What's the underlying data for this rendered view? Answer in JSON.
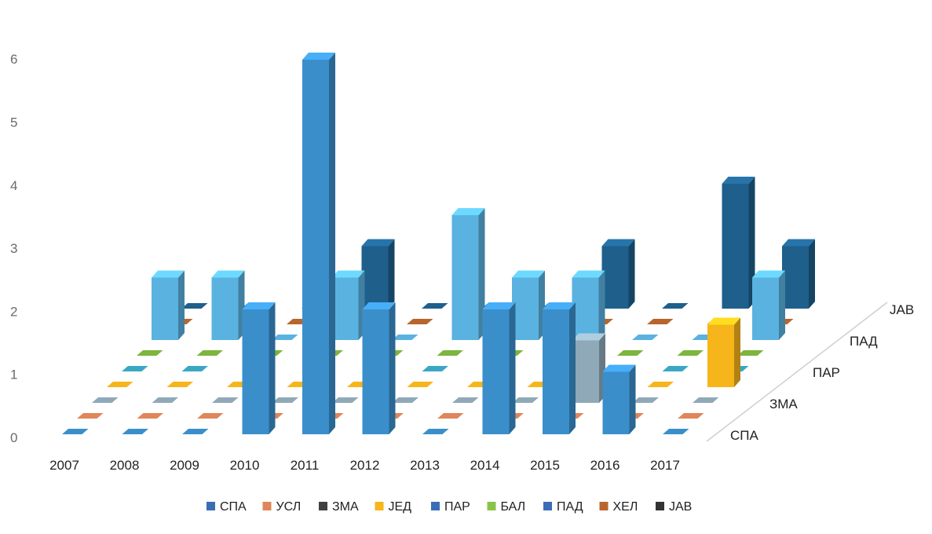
{
  "chart_data": {
    "type": "bar",
    "variant": "3d-column",
    "categories": [
      "2007",
      "2008",
      "2009",
      "2010",
      "2011",
      "2012",
      "2013",
      "2014",
      "2015",
      "2016",
      "2017"
    ],
    "depth_labels": [
      "СПА",
      "ЗМА",
      "ПАР",
      "ПАД",
      "ЈАВ"
    ],
    "yticks": [
      "0",
      "1",
      "2",
      "3",
      "4",
      "5",
      "6"
    ],
    "ylim": [
      0,
      6
    ],
    "series": [
      {
        "name": "СПА",
        "color": "#3a8fcb",
        "depth": 0,
        "values": [
          0,
          0,
          0,
          2,
          6,
          2,
          0,
          2,
          2,
          1,
          0
        ]
      },
      {
        "name": "УСЛ",
        "color": "#e0865a",
        "depth": 0.5,
        "values": [
          0,
          0,
          0,
          0,
          0,
          0,
          0,
          0,
          0,
          0,
          0
        ]
      },
      {
        "name": "ЗМА",
        "color": "#8fa9b8",
        "depth": 1,
        "values": [
          0,
          0,
          0,
          0,
          0,
          0,
          0,
          0,
          1,
          0,
          0
        ]
      },
      {
        "name": "ЈЕД",
        "color": "#f6b51a",
        "depth": 1.5,
        "values": [
          0,
          0,
          0,
          0,
          0,
          0,
          0,
          0,
          0,
          0,
          1
        ]
      },
      {
        "name": "ПАР",
        "color": "#3aa8c4",
        "depth": 2,
        "values": [
          0,
          0,
          0,
          0,
          0,
          0,
          0,
          0,
          0,
          0,
          0
        ]
      },
      {
        "name": "БАЛ",
        "color": "#7db53e",
        "depth": 2.5,
        "values": [
          0,
          0,
          0,
          0,
          0,
          0,
          0,
          0,
          0,
          0,
          0
        ]
      },
      {
        "name": "ПАД",
        "color": "#5ab2e0",
        "depth": 3,
        "values": [
          1,
          1,
          0,
          1,
          0,
          2,
          1,
          1,
          0,
          0,
          1
        ]
      },
      {
        "name": "ХЕЛ",
        "color": "#b8662d",
        "depth": 3.5,
        "values": [
          0,
          0,
          0,
          0,
          0,
          0,
          0,
          0,
          0,
          0,
          0
        ]
      },
      {
        "name": "ЈАВ",
        "color": "#1f5f8b",
        "depth": 4,
        "values": [
          0,
          0,
          0,
          1,
          0,
          0,
          0,
          1,
          0,
          2,
          1
        ]
      }
    ],
    "legend": {
      "position": "bottom",
      "items": [
        {
          "label": "СПА",
          "color": "#3a6db5"
        },
        {
          "label": "УСЛ",
          "color": "#e0865a"
        },
        {
          "label": "ЗМА",
          "color": "#404040"
        },
        {
          "label": "ЈЕД",
          "color": "#f6b51a"
        },
        {
          "label": "ПАР",
          "color": "#3a6db5"
        },
        {
          "label": "БАЛ",
          "color": "#8bc34a"
        },
        {
          "label": "ПАД",
          "color": "#3a6db5"
        },
        {
          "label": "ХЕЛ",
          "color": "#b8662d"
        },
        {
          "label": "ЈАВ",
          "color": "#333333"
        }
      ]
    },
    "grid": false
  }
}
